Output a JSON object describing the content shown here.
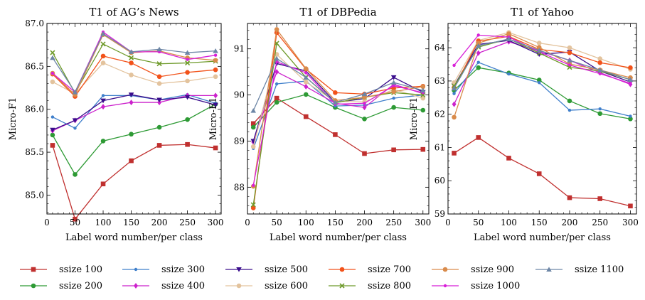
{
  "legend": {
    "placement": "bottom"
  },
  "chart_data": [
    {
      "type": "line",
      "title": "T1 of AG’s News",
      "xlabel": "Label word number/per class",
      "ylabel": "Micro-F1",
      "x": [
        10,
        50,
        100,
        150,
        200,
        250,
        300
      ],
      "xlim": [
        0,
        310
      ],
      "ylim": [
        84.78,
        87.0
      ],
      "xticks": [
        0,
        50,
        100,
        150,
        200,
        250,
        300
      ],
      "yticks": [
        85.0,
        85.5,
        86.0,
        86.5,
        87.0
      ],
      "yticklabels": [
        "85.0",
        "85.5",
        "86.0",
        "86.5",
        "87.0"
      ],
      "series": [
        {
          "name": "ssize 100",
          "values": [
            85.58,
            84.72,
            85.13,
            85.4,
            85.58,
            85.59,
            85.55
          ]
        },
        {
          "name": "ssize 200",
          "values": [
            85.7,
            85.24,
            85.63,
            85.71,
            85.79,
            85.88,
            86.06
          ]
        },
        {
          "name": "ssize 300",
          "values": [
            85.91,
            85.78,
            86.16,
            86.16,
            86.11,
            86.17,
            86.07
          ]
        },
        {
          "name": "ssize 400",
          "values": [
            85.75,
            85.87,
            86.03,
            86.08,
            86.08,
            86.16,
            86.16
          ]
        },
        {
          "name": "ssize 500",
          "values": [
            85.76,
            85.87,
            86.1,
            86.17,
            86.11,
            86.14,
            86.05
          ]
        },
        {
          "name": "ssize 600",
          "values": [
            86.32,
            86.18,
            86.54,
            86.4,
            86.3,
            86.33,
            86.38
          ]
        },
        {
          "name": "ssize 700",
          "values": [
            86.41,
            86.15,
            86.62,
            86.54,
            86.38,
            86.43,
            86.46
          ]
        },
        {
          "name": "ssize 800",
          "values": [
            86.66,
            86.19,
            86.76,
            86.6,
            86.53,
            86.54,
            86.56
          ]
        },
        {
          "name": "ssize 900",
          "values": [
            86.42,
            86.17,
            86.87,
            86.66,
            86.68,
            86.6,
            86.57
          ]
        },
        {
          "name": "ssize 1000",
          "values": [
            86.42,
            86.2,
            86.9,
            86.67,
            86.67,
            86.58,
            86.63
          ]
        },
        {
          "name": "ssize 1100",
          "values": [
            86.6,
            86.2,
            86.88,
            86.67,
            86.7,
            86.66,
            86.68
          ]
        }
      ]
    },
    {
      "type": "line",
      "title": "T1 of DBPedia",
      "xlabel": "Label word number/per class",
      "ylabel": "Micro-F1",
      "x": [
        10,
        50,
        100,
        150,
        200,
        250,
        300
      ],
      "xlim": [
        0,
        310
      ],
      "ylim": [
        87.42,
        91.55
      ],
      "xticks": [
        0,
        50,
        100,
        150,
        200,
        250,
        300
      ],
      "yticks": [
        88,
        89,
        90,
        91
      ],
      "yticklabels": [
        "88",
        "89",
        "90",
        "91"
      ],
      "series": [
        {
          "name": "ssize 100",
          "values": [
            89.38,
            89.93,
            89.53,
            89.14,
            88.73,
            88.81,
            88.82
          ]
        },
        {
          "name": "ssize 200",
          "values": [
            89.3,
            89.84,
            90.01,
            89.73,
            89.48,
            89.73,
            89.67
          ]
        },
        {
          "name": "ssize 300",
          "values": [
            88.84,
            90.24,
            90.3,
            89.76,
            89.78,
            89.93,
            90.0
          ]
        },
        {
          "name": "ssize 400",
          "values": [
            88.98,
            90.5,
            90.18,
            89.82,
            89.73,
            90.23,
            90.03
          ]
        },
        {
          "name": "ssize 500",
          "values": [
            89.0,
            90.68,
            90.52,
            89.84,
            89.92,
            90.38,
            90.06
          ]
        },
        {
          "name": "ssize 600",
          "values": [
            88.88,
            90.88,
            90.28,
            89.86,
            89.85,
            90.12,
            89.93
          ]
        },
        {
          "name": "ssize 700",
          "values": [
            87.55,
            91.35,
            90.56,
            90.05,
            90.02,
            90.15,
            90.19
          ]
        },
        {
          "name": "ssize 800",
          "values": [
            87.62,
            91.12,
            90.38,
            89.83,
            89.95,
            90.05,
            90.0
          ]
        },
        {
          "name": "ssize 900",
          "values": [
            88.02,
            91.42,
            90.57,
            89.88,
            89.95,
            90.07,
            90.18
          ]
        },
        {
          "name": "ssize 1000",
          "values": [
            88.04,
            90.72,
            90.48,
            89.8,
            89.82,
            90.2,
            90.05
          ]
        },
        {
          "name": "ssize 1100",
          "values": [
            89.66,
            90.79,
            90.38,
            89.84,
            90.02,
            90.27,
            90.1
          ]
        }
      ]
    },
    {
      "type": "line",
      "title": "T1 of Yahoo",
      "xlabel": "Label word number/per class",
      "ylabel": "Micro-F1",
      "x": [
        10,
        50,
        100,
        150,
        200,
        250,
        300
      ],
      "xlim": [
        0,
        310
      ],
      "ylim": [
        59.0,
        64.73
      ],
      "xticks": [
        0,
        50,
        100,
        150,
        200,
        250,
        300
      ],
      "yticks": [
        59,
        60,
        61,
        62,
        63,
        64
      ],
      "yticklabels": [
        "59",
        "60",
        "61",
        "62",
        "63",
        "64"
      ],
      "series": [
        {
          "name": "ssize 100",
          "values": [
            60.83,
            61.3,
            60.68,
            60.21,
            59.49,
            59.46,
            59.24
          ]
        },
        {
          "name": "ssize 200",
          "values": [
            62.72,
            63.4,
            63.24,
            63.03,
            62.4,
            62.02,
            61.86
          ]
        },
        {
          "name": "ssize 300",
          "values": [
            62.62,
            63.56,
            63.21,
            62.95,
            62.12,
            62.16,
            61.94
          ]
        },
        {
          "name": "ssize 400",
          "values": [
            62.3,
            63.84,
            64.18,
            63.9,
            63.62,
            63.25,
            62.9
          ]
        },
        {
          "name": "ssize 500",
          "values": [
            62.86,
            64.1,
            64.22,
            63.8,
            63.87,
            63.3,
            62.97
          ]
        },
        {
          "name": "ssize 600",
          "values": [
            62.95,
            64.22,
            64.46,
            64.14,
            64.0,
            63.67,
            63.35
          ]
        },
        {
          "name": "ssize 700",
          "values": [
            62.8,
            64.2,
            64.34,
            63.95,
            63.85,
            63.55,
            63.4
          ]
        },
        {
          "name": "ssize 800",
          "values": [
            62.85,
            64.02,
            64.27,
            63.84,
            63.41,
            63.3,
            63.04
          ]
        },
        {
          "name": "ssize 900",
          "values": [
            61.91,
            64.14,
            64.42,
            64.01,
            63.51,
            63.33,
            63.1
          ]
        },
        {
          "name": "ssize 1000",
          "values": [
            63.47,
            64.38,
            64.32,
            63.88,
            63.48,
            63.22,
            62.93
          ]
        },
        {
          "name": "ssize 1100",
          "values": [
            62.78,
            64.06,
            64.26,
            63.92,
            63.62,
            63.33,
            63.04
          ]
        }
      ]
    }
  ],
  "series_styles": [
    {
      "color": "#c0302f",
      "marker": "square"
    },
    {
      "color": "#2d9a34",
      "marker": "circle"
    },
    {
      "color": "#3f7fcb",
      "marker": "small-circle"
    },
    {
      "color": "#cc22cc",
      "marker": "diamond"
    },
    {
      "color": "#3a0d8c",
      "marker": "triangle-down"
    },
    {
      "color": "#e3c39d",
      "marker": "circle"
    },
    {
      "color": "#f2521a",
      "marker": "circle"
    },
    {
      "color": "#6e9a2a",
      "marker": "x"
    },
    {
      "color": "#d98b4b",
      "marker": "circle"
    },
    {
      "color": "#d81fd8",
      "marker": "small-circle"
    },
    {
      "color": "#6d86a6",
      "marker": "triangle-up"
    }
  ]
}
